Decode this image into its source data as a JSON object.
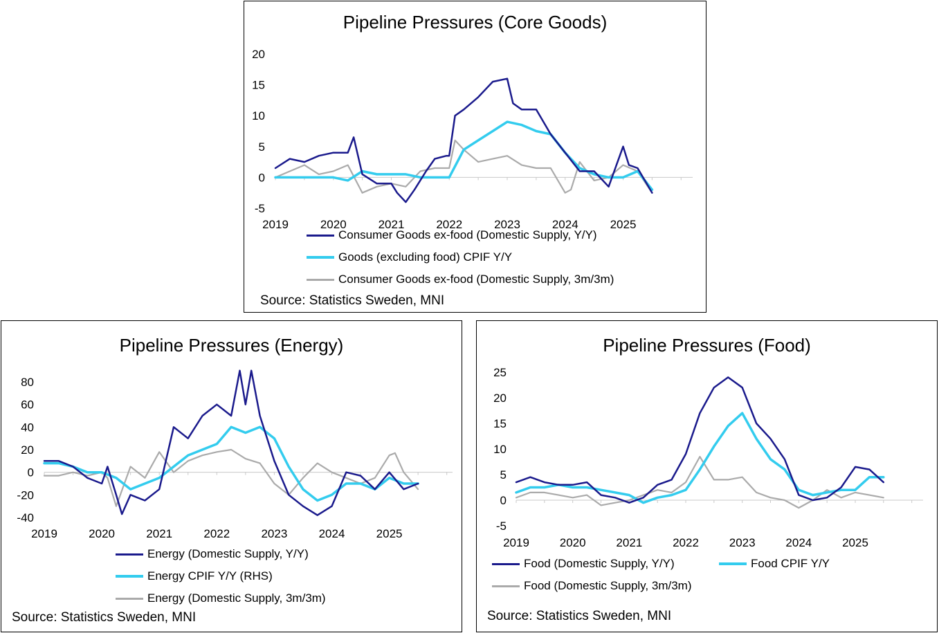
{
  "chart_data": [
    {
      "type": "line",
      "title": "Pipeline Pressures (Core Goods)",
      "source": "Source: Statistics Sweden, MNI",
      "ylim": [
        -5,
        20
      ],
      "y_ticks": [
        "20",
        "15",
        "10",
        "5",
        "0",
        "-5"
      ],
      "x_ticks": [
        "2019",
        "2020",
        "2021",
        "2022",
        "2023",
        "2024",
        "2025"
      ],
      "xlim": [
        2019,
        2026.2
      ],
      "grid": false,
      "series": [
        {
          "name": "Consumer Goods ex-food (Domestic Supply, Y/Y)",
          "color": "#1a1a8c",
          "x": [
            2019.0,
            2019.25,
            2019.5,
            2019.75,
            2020.0,
            2020.25,
            2020.35,
            2020.5,
            2020.75,
            2021.0,
            2021.1,
            2021.25,
            2021.4,
            2021.6,
            2021.75,
            2021.95,
            2022.0,
            2022.1,
            2022.25,
            2022.5,
            2022.75,
            2023.0,
            2023.1,
            2023.25,
            2023.5,
            2023.75,
            2024.0,
            2024.25,
            2024.5,
            2024.75,
            2025.0,
            2025.1,
            2025.25,
            2025.5
          ],
          "y": [
            1.5,
            3.0,
            2.5,
            3.5,
            4.0,
            4.0,
            6.5,
            0.5,
            -1.0,
            -1.0,
            -2.5,
            -4.0,
            -2.0,
            1.0,
            3.0,
            3.5,
            3.5,
            10.0,
            11.0,
            13.0,
            15.5,
            16.0,
            12.0,
            11.0,
            11.0,
            7.0,
            4.0,
            1.0,
            1.0,
            -1.5,
            5.0,
            2.0,
            1.5,
            -2.5
          ]
        },
        {
          "name": "Goods (excluding food) CPIF Y/Y",
          "color": "#33ccee",
          "x": [
            2019.0,
            2019.25,
            2019.5,
            2019.75,
            2020.0,
            2020.25,
            2020.5,
            2020.75,
            2021.0,
            2021.25,
            2021.5,
            2021.75,
            2022.0,
            2022.25,
            2022.5,
            2022.75,
            2023.0,
            2023.25,
            2023.5,
            2023.75,
            2024.0,
            2024.25,
            2024.5,
            2024.75,
            2025.0,
            2025.25,
            2025.5
          ],
          "y": [
            0.0,
            0.0,
            0.0,
            0.0,
            0.0,
            -0.5,
            1.0,
            0.5,
            0.5,
            0.5,
            0.0,
            0.0,
            0.0,
            4.5,
            6.0,
            7.5,
            9.0,
            8.5,
            7.5,
            7.0,
            4.0,
            1.5,
            0.5,
            0.0,
            0.0,
            1.0,
            -2.0
          ]
        },
        {
          "name": "Consumer Goods ex-food (Domestic Supply, 3m/3m)",
          "color": "#aaaaaa",
          "x": [
            2019.0,
            2019.25,
            2019.5,
            2019.75,
            2020.0,
            2020.25,
            2020.5,
            2020.75,
            2021.0,
            2021.25,
            2021.5,
            2021.75,
            2022.0,
            2022.1,
            2022.25,
            2022.5,
            2022.75,
            2023.0,
            2023.25,
            2023.5,
            2023.75,
            2024.0,
            2024.1,
            2024.25,
            2024.5,
            2024.75,
            2025.0,
            2025.25,
            2025.5
          ],
          "y": [
            0.0,
            1.0,
            2.0,
            0.5,
            1.0,
            2.0,
            -2.5,
            -1.5,
            -1.0,
            -1.5,
            1.0,
            1.5,
            1.5,
            6.0,
            4.5,
            2.5,
            3.0,
            3.5,
            2.0,
            1.5,
            1.5,
            -2.5,
            -2.0,
            2.5,
            -0.5,
            0.0,
            2.0,
            1.0,
            -2.5
          ]
        }
      ]
    },
    {
      "type": "line",
      "title": "Pipeline Pressures (Energy)",
      "source": "Source: Statistics Sweden, MNI",
      "ylim": [
        -40,
        80
      ],
      "y_ticks": [
        "80",
        "60",
        "40",
        "20",
        "0",
        "-20",
        "-40"
      ],
      "x_ticks": [
        "2019",
        "2020",
        "2021",
        "2022",
        "2023",
        "2024",
        "2025"
      ],
      "xlim": [
        2019,
        2026.1
      ],
      "grid": false,
      "series": [
        {
          "name": "Energy (Domestic Supply, Y/Y)",
          "color": "#1a1a8c",
          "x": [
            2019.0,
            2019.25,
            2019.5,
            2019.75,
            2020.0,
            2020.1,
            2020.25,
            2020.35,
            2020.5,
            2020.75,
            2021.0,
            2021.25,
            2021.5,
            2021.75,
            2022.0,
            2022.25,
            2022.4,
            2022.5,
            2022.6,
            2022.75,
            2023.0,
            2023.25,
            2023.5,
            2023.75,
            2024.0,
            2024.25,
            2024.5,
            2024.75,
            2025.0,
            2025.25,
            2025.5
          ],
          "y": [
            10.0,
            10.0,
            5.0,
            -5.0,
            -10.0,
            5.0,
            -20.0,
            -37.0,
            -20.0,
            -25.0,
            -15.0,
            40.0,
            30.0,
            50.0,
            60.0,
            50.0,
            90.0,
            60.0,
            90.0,
            50.0,
            10.0,
            -20.0,
            -30.0,
            -38.0,
            -30.0,
            0.0,
            -3.0,
            -15.0,
            0.0,
            -15.0,
            -10.0
          ]
        },
        {
          "name": "Energy CPIF Y/Y (RHS)",
          "color": "#33ccee",
          "x": [
            2019.0,
            2019.25,
            2019.5,
            2019.75,
            2020.0,
            2020.25,
            2020.5,
            2020.75,
            2021.0,
            2021.25,
            2021.5,
            2021.75,
            2022.0,
            2022.25,
            2022.5,
            2022.75,
            2023.0,
            2023.25,
            2023.5,
            2023.75,
            2024.0,
            2024.25,
            2024.5,
            2024.75,
            2025.0,
            2025.25,
            2025.5
          ],
          "y": [
            8.0,
            8.0,
            5.0,
            0.0,
            0.0,
            -5.0,
            -15.0,
            -10.0,
            -5.0,
            5.0,
            15.0,
            20.0,
            25.0,
            40.0,
            35.0,
            40.0,
            30.0,
            5.0,
            -15.0,
            -25.0,
            -20.0,
            -10.0,
            -10.0,
            -15.0,
            -5.0,
            -10.0,
            -10.0
          ]
        },
        {
          "name": "Energy (Domestic Supply, 3m/3m)",
          "color": "#aaaaaa",
          "x": [
            2019.0,
            2019.25,
            2019.5,
            2019.75,
            2020.0,
            2020.1,
            2020.25,
            2020.5,
            2020.75,
            2021.0,
            2021.25,
            2021.5,
            2021.75,
            2022.0,
            2022.25,
            2022.5,
            2022.75,
            2023.0,
            2023.25,
            2023.5,
            2023.75,
            2024.0,
            2024.25,
            2024.5,
            2024.75,
            2025.0,
            2025.1,
            2025.25,
            2025.5
          ],
          "y": [
            -3.0,
            -3.0,
            0.0,
            -3.0,
            0.0,
            -5.0,
            -30.0,
            5.0,
            -5.0,
            18.0,
            0.0,
            10.0,
            15.0,
            18.0,
            20.0,
            12.0,
            8.0,
            -10.0,
            -20.0,
            -5.0,
            8.0,
            0.0,
            -5.0,
            -10.0,
            -5.0,
            15.0,
            17.0,
            0.0,
            -15.0
          ]
        }
      ]
    },
    {
      "type": "line",
      "title": "Pipeline Pressures (Food)",
      "source": "Source: Statistics Sweden, MNI",
      "ylim": [
        -5,
        25
      ],
      "y_ticks": [
        "25",
        "20",
        "15",
        "10",
        "5",
        "0",
        "-5"
      ],
      "x_ticks": [
        "2019",
        "2020",
        "2021",
        "2022",
        "2023",
        "2024",
        "2025"
      ],
      "xlim": [
        2019,
        2026.2
      ],
      "grid": false,
      "series": [
        {
          "name": "Food (Domestic Supply, Y/Y)",
          "color": "#1a1a8c",
          "x": [
            2019.0,
            2019.25,
            2019.5,
            2019.75,
            2020.0,
            2020.25,
            2020.5,
            2020.75,
            2021.0,
            2021.25,
            2021.5,
            2021.75,
            2022.0,
            2022.25,
            2022.5,
            2022.75,
            2023.0,
            2023.25,
            2023.5,
            2023.75,
            2024.0,
            2024.25,
            2024.5,
            2024.75,
            2025.0,
            2025.25,
            2025.5
          ],
          "y": [
            3.5,
            4.5,
            3.5,
            3.0,
            3.0,
            3.5,
            1.0,
            0.5,
            -0.5,
            0.5,
            3.0,
            4.0,
            9.0,
            17.0,
            22.0,
            24.0,
            22.0,
            15.0,
            12.0,
            8.0,
            1.0,
            0.0,
            0.5,
            2.5,
            6.5,
            6.0,
            3.5
          ]
        },
        {
          "name": "Food CPIF Y/Y",
          "color": "#33ccee",
          "x": [
            2019.0,
            2019.25,
            2019.5,
            2019.75,
            2020.0,
            2020.25,
            2020.5,
            2020.75,
            2021.0,
            2021.25,
            2021.5,
            2021.75,
            2022.0,
            2022.25,
            2022.5,
            2022.75,
            2023.0,
            2023.25,
            2023.5,
            2023.75,
            2024.0,
            2024.25,
            2024.5,
            2024.75,
            2025.0,
            2025.25,
            2025.5
          ],
          "y": [
            1.5,
            2.5,
            2.5,
            3.0,
            2.5,
            2.5,
            2.0,
            1.5,
            1.0,
            -0.5,
            0.5,
            1.0,
            2.0,
            6.0,
            10.5,
            14.5,
            17.0,
            12.0,
            8.0,
            6.0,
            2.0,
            1.0,
            1.5,
            2.0,
            2.0,
            4.5,
            4.5
          ]
        },
        {
          "name": "Food (Domestic Supply, 3m/3m)",
          "color": "#aaaaaa",
          "x": [
            2019.0,
            2019.25,
            2019.5,
            2019.75,
            2020.0,
            2020.25,
            2020.5,
            2020.75,
            2021.0,
            2021.25,
            2021.5,
            2021.75,
            2022.0,
            2022.25,
            2022.5,
            2022.75,
            2023.0,
            2023.25,
            2023.5,
            2023.75,
            2024.0,
            2024.25,
            2024.5,
            2024.75,
            2025.0,
            2025.25,
            2025.5
          ],
          "y": [
            0.5,
            1.5,
            1.5,
            1.0,
            0.5,
            1.0,
            -1.0,
            -0.5,
            0.0,
            1.0,
            2.0,
            1.5,
            3.5,
            8.5,
            4.0,
            4.0,
            4.5,
            1.5,
            0.5,
            0.0,
            -1.5,
            0.0,
            2.0,
            0.5,
            1.5,
            1.0,
            0.5
          ]
        }
      ]
    }
  ]
}
